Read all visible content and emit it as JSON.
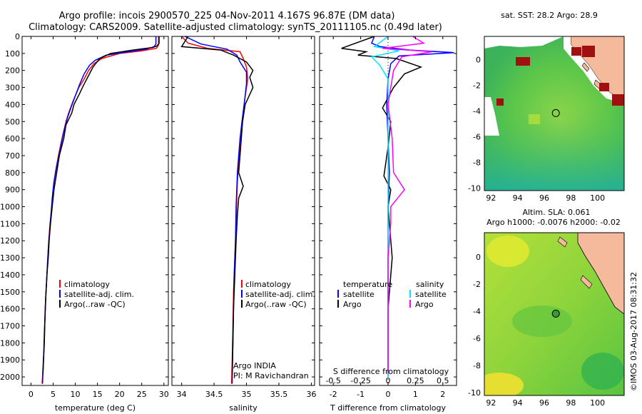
{
  "header": {
    "line1": "Argo profile: incois 2900570_225 04-Nov-2011 4.167S 96.87E (DM data)",
    "line2": "Climatology: CARS2009. Satellite-adjusted climatology: synTS_20111105.nc (0.49d later)"
  },
  "credit": "©IMOS 03-Aug-2017 08:31:32",
  "colors": {
    "clim": "#ff0000",
    "sat": "#0000ff",
    "argo": "#000000",
    "sal_sat": "#00e5ff",
    "sal_argo": "#ff00ff"
  },
  "chart_data": [
    {
      "type": "line",
      "xlabel": "temperature (deg C)",
      "xticks": [
        0,
        5,
        10,
        15,
        20,
        25,
        30
      ],
      "xlim": [
        -2,
        31
      ],
      "ylim": [
        2050,
        0
      ],
      "yticks": [
        0,
        100,
        200,
        300,
        400,
        500,
        600,
        700,
        800,
        900,
        1000,
        1100,
        1200,
        1300,
        1400,
        1500,
        1600,
        1700,
        1800,
        1900,
        2000
      ],
      "legend": [
        "climatology",
        "satellite-adj. clim.",
        "Argo(..raw -QC)"
      ],
      "series": [
        {
          "name": "climatology",
          "color": "#ff0000",
          "points": [
            [
              28.8,
              0
            ],
            [
              28.8,
              50
            ],
            [
              28.3,
              70
            ],
            [
              25,
              85
            ],
            [
              20,
              100
            ],
            [
              16,
              130
            ],
            [
              14.2,
              160
            ],
            [
              13,
              200
            ],
            [
              12,
              250
            ],
            [
              10.8,
              300
            ],
            [
              9.5,
              380
            ],
            [
              8.5,
              450
            ],
            [
              7.9,
              500
            ],
            [
              7,
              600
            ],
            [
              6.2,
              700
            ],
            [
              5.5,
              800
            ],
            [
              5,
              900
            ],
            [
              4.7,
              1000
            ],
            [
              4.3,
              1100
            ],
            [
              4,
              1200
            ],
            [
              3.8,
              1300
            ],
            [
              3.6,
              1400
            ],
            [
              3.4,
              1500
            ],
            [
              3.2,
              1600
            ],
            [
              3.1,
              1700
            ],
            [
              3,
              1800
            ],
            [
              2.8,
              1900
            ],
            [
              2.6,
              2000
            ],
            [
              2.5,
              2040
            ]
          ]
        },
        {
          "name": "satellite-adj. clim.",
          "color": "#0000ff",
          "points": [
            [
              28.2,
              0
            ],
            [
              28.2,
              45
            ],
            [
              27.8,
              60
            ],
            [
              26,
              75
            ],
            [
              22,
              90
            ],
            [
              17,
              110
            ],
            [
              14.5,
              140
            ],
            [
              13.2,
              170
            ],
            [
              12,
              220
            ],
            [
              11,
              280
            ],
            [
              10,
              350
            ],
            [
              9,
              420
            ],
            [
              8.2,
              480
            ],
            [
              7.4,
              560
            ],
            [
              6.7,
              650
            ],
            [
              5.9,
              750
            ],
            [
              5.2,
              850
            ],
            [
              4.8,
              950
            ],
            [
              4.5,
              1050
            ],
            [
              4.2,
              1150
            ],
            [
              3.9,
              1250
            ],
            [
              3.7,
              1350
            ],
            [
              3.5,
              1450
            ],
            [
              3.3,
              1550
            ],
            [
              3.15,
              1650
            ],
            [
              3,
              1750
            ],
            [
              2.9,
              1850
            ],
            [
              2.75,
              1950
            ],
            [
              2.6,
              2040
            ]
          ]
        },
        {
          "name": "Argo(..raw -QC)",
          "color": "#000000",
          "points": [
            [
              28.9,
              0
            ],
            [
              28.9,
              40
            ],
            [
              28.5,
              55
            ],
            [
              27.5,
              65
            ],
            [
              23,
              80
            ],
            [
              18,
              100
            ],
            [
              15.5,
              130
            ],
            [
              14,
              180
            ],
            [
              13,
              230
            ],
            [
              11.8,
              290
            ],
            [
              10.9,
              340
            ],
            [
              9.7,
              400
            ],
            [
              9.2,
              450
            ],
            [
              7.9,
              520
            ],
            [
              7.4,
              600
            ],
            [
              6.4,
              700
            ],
            [
              5.8,
              800
            ],
            [
              5.2,
              900
            ],
            [
              4.8,
              1000
            ],
            [
              4.4,
              1100
            ],
            [
              4.1,
              1200
            ],
            [
              3.9,
              1300
            ],
            [
              3.6,
              1400
            ],
            [
              3.4,
              1500
            ],
            [
              3.25,
              1600
            ],
            [
              3.1,
              1700
            ],
            [
              3,
              1800
            ],
            [
              2.85,
              1900
            ],
            [
              2.7,
              1980
            ]
          ]
        }
      ]
    },
    {
      "type": "line",
      "xlabel": "salinity",
      "xticks": [
        34,
        34.5,
        35,
        35.5,
        36
      ],
      "xlim": [
        33.85,
        36.05
      ],
      "ylim": [
        2050,
        0
      ],
      "legend": [
        "climatology",
        "satellite-adj. clim.",
        "Argo(..raw -QC)"
      ],
      "annotations": [
        "Argo INDIA",
        "PI: M Ravichandran"
      ],
      "series": [
        {
          "name": "climatology",
          "color": "#ff0000",
          "points": [
            [
              34.0,
              0
            ],
            [
              34.1,
              40
            ],
            [
              34.4,
              70
            ],
            [
              34.9,
              90
            ],
            [
              34.95,
              130
            ],
            [
              35.0,
              180
            ],
            [
              35.02,
              250
            ],
            [
              34.98,
              350
            ],
            [
              34.95,
              450
            ],
            [
              34.92,
              550
            ],
            [
              34.9,
              650
            ],
            [
              34.88,
              750
            ],
            [
              34.86,
              850
            ],
            [
              34.85,
              950
            ],
            [
              34.84,
              1100
            ],
            [
              34.82,
              1300
            ],
            [
              34.8,
              1500
            ],
            [
              34.79,
              1700
            ],
            [
              34.78,
              1900
            ],
            [
              34.77,
              2040
            ]
          ]
        },
        {
          "name": "satellite-adj. clim.",
          "color": "#0000ff",
          "points": [
            [
              34.05,
              0
            ],
            [
              34.3,
              45
            ],
            [
              34.7,
              75
            ],
            [
              34.85,
              110
            ],
            [
              34.9,
              150
            ],
            [
              35.0,
              210
            ],
            [
              35.0,
              280
            ],
            [
              34.97,
              380
            ],
            [
              34.93,
              500
            ],
            [
              34.9,
              600
            ],
            [
              34.88,
              700
            ],
            [
              34.86,
              800
            ],
            [
              34.85,
              900
            ],
            [
              34.84,
              1000
            ],
            [
              34.83,
              1200
            ],
            [
              34.81,
              1400
            ],
            [
              34.8,
              1600
            ],
            [
              34.79,
              1800
            ],
            [
              34.78,
              2040
            ]
          ]
        },
        {
          "name": "Argo(..raw -QC)",
          "color": "#000000",
          "points": [
            [
              34.1,
              0
            ],
            [
              34.0,
              60
            ],
            [
              34.6,
              80
            ],
            [
              34.8,
              110
            ],
            [
              35.0,
              150
            ],
            [
              35.1,
              200
            ],
            [
              35.05,
              240
            ],
            [
              35.1,
              300
            ],
            [
              34.98,
              400
            ],
            [
              34.94,
              500
            ],
            [
              34.92,
              600
            ],
            [
              34.9,
              700
            ],
            [
              34.88,
              800
            ],
            [
              34.95,
              880
            ],
            [
              34.88,
              950
            ],
            [
              34.86,
              1050
            ],
            [
              34.84,
              1200
            ],
            [
              34.82,
              1400
            ],
            [
              34.8,
              1600
            ],
            [
              34.79,
              1800
            ],
            [
              34.78,
              1980
            ]
          ]
        }
      ]
    },
    {
      "type": "line",
      "xlabel_top": "S difference from climatology",
      "xticks_top": [
        -0.5,
        -0.25,
        0,
        0.25,
        0.5
      ],
      "xlabel": "T difference from climatology",
      "xticks": [
        -2,
        -1,
        0,
        1,
        2
      ],
      "xlim": [
        -2.5,
        2.5
      ],
      "ylim": [
        2050,
        0
      ],
      "legend_titles": [
        "temperature",
        "salinity"
      ],
      "legend": [
        "satellite",
        "Argo",
        "satellite",
        "Argo"
      ],
      "series": [
        {
          "name": "temperature satellite",
          "color": "#0000ff",
          "points": [
            [
              -0.5,
              0
            ],
            [
              -0.6,
              40
            ],
            [
              -0.3,
              60
            ],
            [
              0.8,
              80
            ],
            [
              2.4,
              95
            ],
            [
              0.4,
              115
            ],
            [
              0.1,
              160
            ],
            [
              0,
              250
            ],
            [
              -0.05,
              400
            ],
            [
              0,
              600
            ],
            [
              0.05,
              800
            ],
            [
              0,
              1000
            ],
            [
              0,
              1300
            ],
            [
              0,
              1600
            ],
            [
              0,
              2000
            ]
          ]
        },
        {
          "name": "temperature Argo",
          "color": "#000000",
          "points": [
            [
              -0.5,
              0
            ],
            [
              -1.7,
              70
            ],
            [
              -0.8,
              90
            ],
            [
              -1.1,
              110
            ],
            [
              0.3,
              130
            ],
            [
              1.2,
              180
            ],
            [
              0.6,
              220
            ],
            [
              0.2,
              300
            ],
            [
              0,
              360
            ],
            [
              -0.2,
              420
            ],
            [
              0.1,
              500
            ],
            [
              0,
              650
            ],
            [
              -0.15,
              820
            ],
            [
              0.1,
              900
            ],
            [
              0,
              1000
            ],
            [
              0.15,
              1300
            ],
            [
              0,
              1600
            ],
            [
              0,
              1980
            ]
          ]
        },
        {
          "name": "salinity satellite",
          "color": "#00e5ff",
          "points": [
            [
              0,
              0
            ],
            [
              -0.5,
              60
            ],
            [
              0.4,
              85
            ],
            [
              -0.6,
              120
            ],
            [
              -0.3,
              170
            ],
            [
              0,
              250
            ],
            [
              0,
              400
            ],
            [
              0,
              600
            ],
            [
              0,
              800
            ],
            [
              0,
              1000
            ],
            [
              0,
              1300
            ],
            [
              0,
              1600
            ],
            [
              0,
              2000
            ]
          ]
        },
        {
          "name": "salinity Argo",
          "color": "#ff00ff",
          "points": [
            [
              0.9,
              0
            ],
            [
              1.3,
              40
            ],
            [
              -0.2,
              70
            ],
            [
              1.6,
              90
            ],
            [
              0.5,
              120
            ],
            [
              0.2,
              200
            ],
            [
              0.1,
              300
            ],
            [
              0,
              400
            ],
            [
              0.15,
              600
            ],
            [
              0.2,
              800
            ],
            [
              0.6,
              900
            ],
            [
              0.1,
              1000
            ],
            [
              0.1,
              1100
            ],
            [
              0,
              1300
            ],
            [
              0,
              1600
            ],
            [
              0,
              1980
            ]
          ]
        }
      ]
    },
    {
      "type": "heatmap",
      "title": "sat. SST: 28.2 Argo: 28.9",
      "xticks": [
        92,
        94,
        96,
        98,
        100
      ],
      "yticks": [
        0,
        -2,
        -4,
        -6,
        -8,
        -10
      ],
      "xlim": [
        91.5,
        102
      ],
      "ylim": [
        -10.2,
        1.8
      ],
      "marker": [
        96.87,
        -4.167
      ]
    },
    {
      "type": "heatmap",
      "title": "Altim. SLA: 0.061",
      "subtitle": "Argo h1000: -0.0076 h2000: -0.02",
      "xticks": [
        92,
        94,
        96,
        98,
        100
      ],
      "yticks": [
        0,
        -2,
        -4,
        -6,
        -8,
        -10
      ],
      "xlim": [
        91.5,
        102
      ],
      "ylim": [
        -10.2,
        1.8
      ],
      "marker": [
        96.87,
        -4.167
      ]
    }
  ]
}
